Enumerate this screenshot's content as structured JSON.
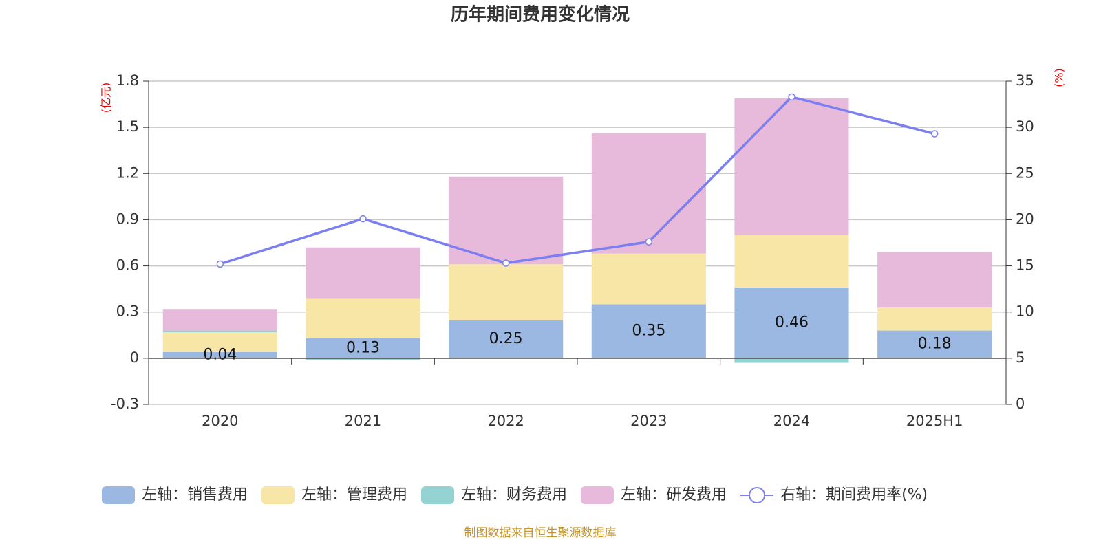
{
  "chart_data": {
    "type": "bar",
    "title": "历年期间费用变化情况",
    "y_label": "(亿元)",
    "y2_label": "(%)",
    "categories": [
      "2020",
      "2021",
      "2022",
      "2023",
      "2024",
      "2025H1"
    ],
    "series": [
      {
        "name": "左轴：销售费用",
        "color": "#9bb8e2",
        "values": [
          0.04,
          0.13,
          0.25,
          0.35,
          0.46,
          0.18
        ],
        "show_labels": true
      },
      {
        "name": "左轴：管理费用",
        "color": "#f8e6a6",
        "values": [
          0.13,
          0.26,
          0.36,
          0.33,
          0.34,
          0.15
        ]
      },
      {
        "name": "左轴：财务费用",
        "color": "#95d3d3",
        "values": [
          0.01,
          -0.01,
          0,
          0,
          -0.03,
          0
        ]
      },
      {
        "name": "左轴：研发费用",
        "color": "#e7b9da",
        "values": [
          0.14,
          0.33,
          0.57,
          0.78,
          0.89,
          0.36
        ]
      },
      {
        "name": "右轴：期间费用率(%)",
        "color": "#7b7ff0",
        "type": "line",
        "axis": "y2",
        "values": [
          15.2,
          20.1,
          15.3,
          17.6,
          33.3,
          29.3
        ]
      }
    ],
    "ylim": [
      -0.3,
      1.8
    ],
    "yticks": [
      -0.3,
      0,
      0.3,
      0.6,
      0.9,
      1.2,
      1.5,
      1.8
    ],
    "y2lim": [
      0,
      35
    ],
    "y2ticks": [
      0,
      5,
      10,
      15,
      20,
      25,
      30,
      35
    ],
    "grid": true,
    "legend": "bottom",
    "source": "制图数据来自恒生聚源数据库"
  }
}
